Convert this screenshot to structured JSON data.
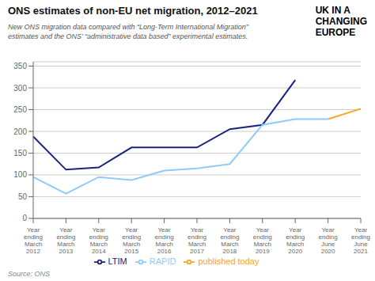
{
  "chart_data": {
    "type": "line",
    "title": "ONS estimates of non-EU net migration, 2012–2021",
    "subtitle": "New ONS migration data compared with “Long-Term International Migration”\nestimates and the ONS’ “administrative data based” experimental estimates.",
    "annotations": [
      "UK IN A",
      "CHANGING",
      "EUROPE"
    ],
    "source": "Source: ONS",
    "categories": [
      "Year\nending\nMarch\n2012",
      "Year\nending\nMarch\n2013",
      "Year\nending\nMarch\n2014",
      "Year\nending\nMarch\n2015",
      "Year\nending\nMarch\n2016",
      "Year\nending\nMarch\n2017",
      "Year\nending\nMarch\n2018",
      "Year\nending\nMarch\n2019",
      "Year\nending\nMarch\n2020",
      "Year\nending\nJune\n2020",
      "Year\nending\nJune\n2021"
    ],
    "series": [
      {
        "name": "LTIM",
        "color": "#1a237e",
        "values": [
          188,
          112,
          117,
          163,
          163,
          163,
          205,
          215,
          318,
          null,
          null
        ]
      },
      {
        "name": "published today",
        "color": "#f5a623",
        "values": [
          null,
          null,
          null,
          null,
          null,
          null,
          null,
          null,
          null,
          228,
          252
        ]
      },
      {
        "name": "RAPID",
        "color": "#90caf9",
        "values": [
          95,
          57,
          95,
          88,
          110,
          115,
          125,
          215,
          228,
          228,
          null
        ]
      }
    ],
    "ylim": [
      0,
      360
    ],
    "yticks": [
      0,
      50,
      100,
      150,
      200,
      250,
      300,
      350
    ],
    "grid": true,
    "legend": "bottom"
  }
}
